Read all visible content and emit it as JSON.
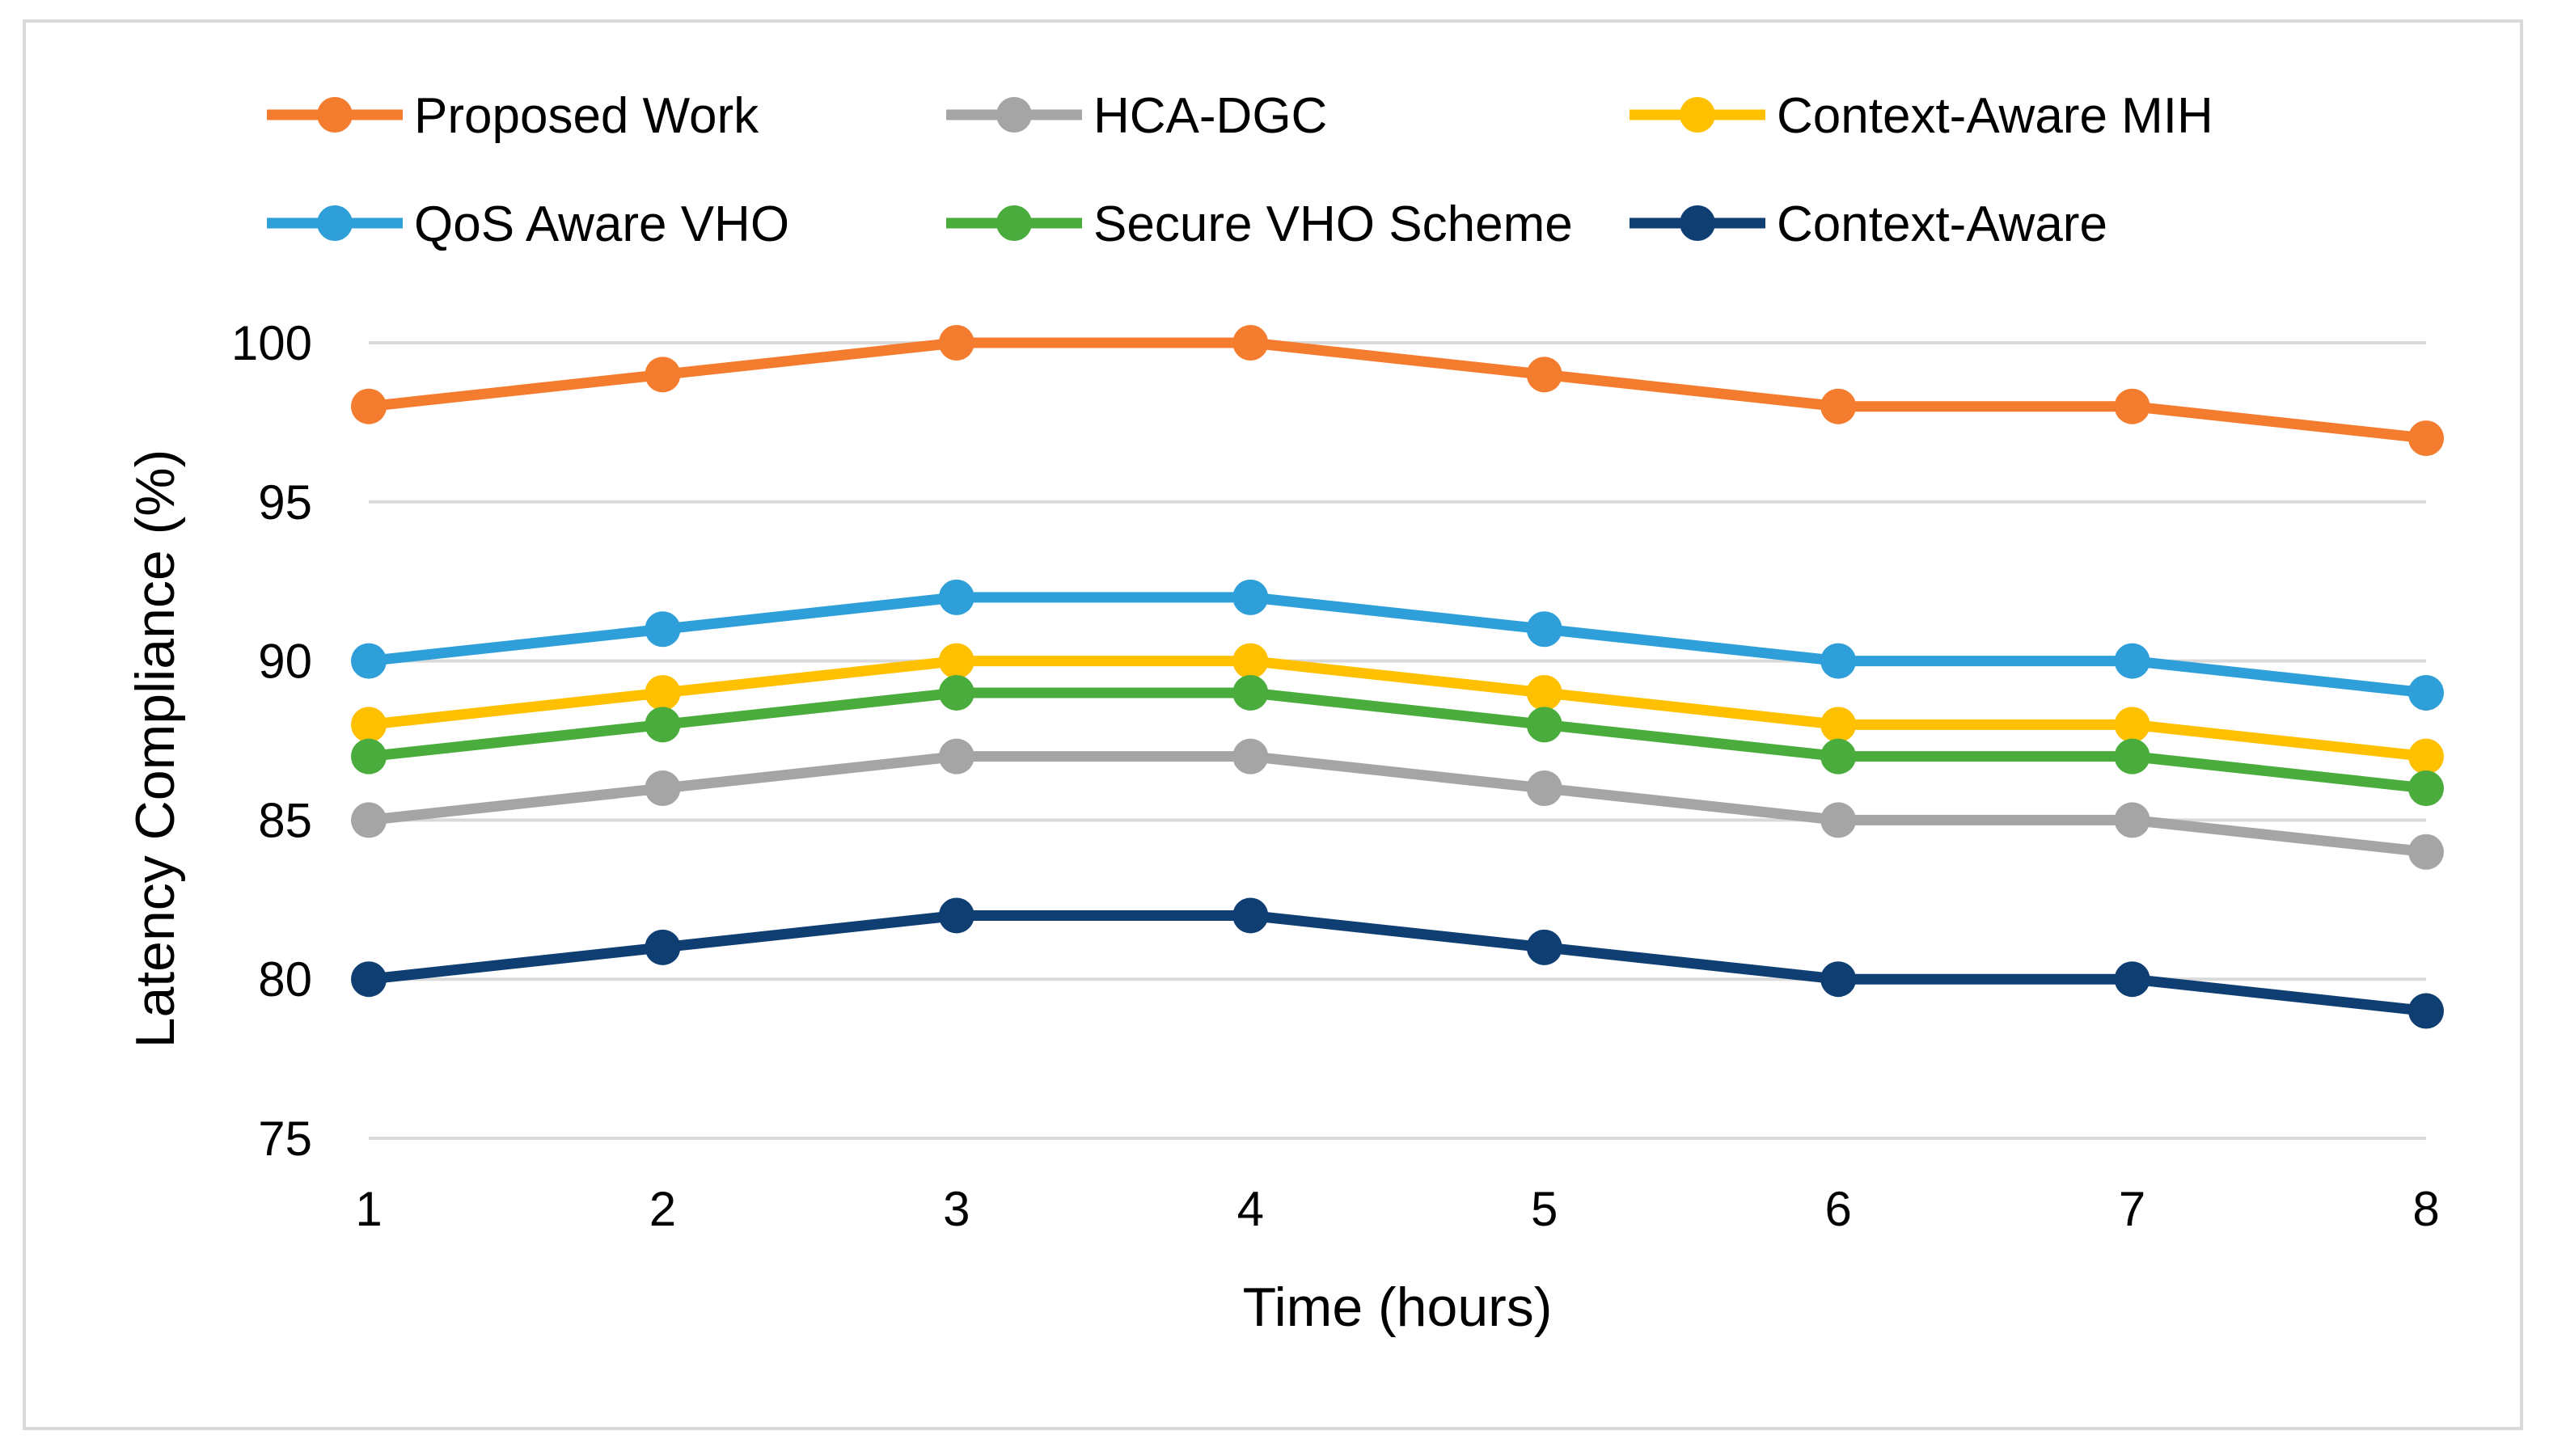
{
  "chart_data": {
    "type": "line",
    "title": "",
    "xlabel": "Time (hours)",
    "ylabel": "Latency Compliance (%)",
    "x": [
      1,
      2,
      3,
      4,
      5,
      6,
      7,
      8
    ],
    "ylim": [
      75,
      100
    ],
    "yticks": [
      75,
      80,
      85,
      90,
      95,
      100
    ],
    "grid": "horizontal",
    "legend_position": "top",
    "series": [
      {
        "name": "Proposed Work",
        "color": "#f47c2f",
        "values": [
          98,
          99,
          100,
          100,
          99,
          98,
          98,
          97
        ]
      },
      {
        "name": "HCA-DGC",
        "color": "#a5a5a5",
        "values": [
          85,
          86,
          87,
          87,
          86,
          85,
          85,
          84
        ]
      },
      {
        "name": "Context-Aware MIH",
        "color": "#ffc000",
        "values": [
          88,
          89,
          90,
          90,
          89,
          88,
          88,
          87
        ]
      },
      {
        "name": "QoS Aware VHO",
        "color": "#2e9fd9",
        "values": [
          90,
          91,
          92,
          92,
          91,
          90,
          90,
          89
        ]
      },
      {
        "name": "Secure VHO Scheme",
        "color": "#4aac3c",
        "values": [
          87,
          88,
          89,
          89,
          88,
          87,
          87,
          86
        ]
      },
      {
        "name": "Context-Aware",
        "color": "#0f3e73",
        "values": [
          80,
          81,
          82,
          82,
          81,
          80,
          80,
          79
        ]
      }
    ]
  }
}
